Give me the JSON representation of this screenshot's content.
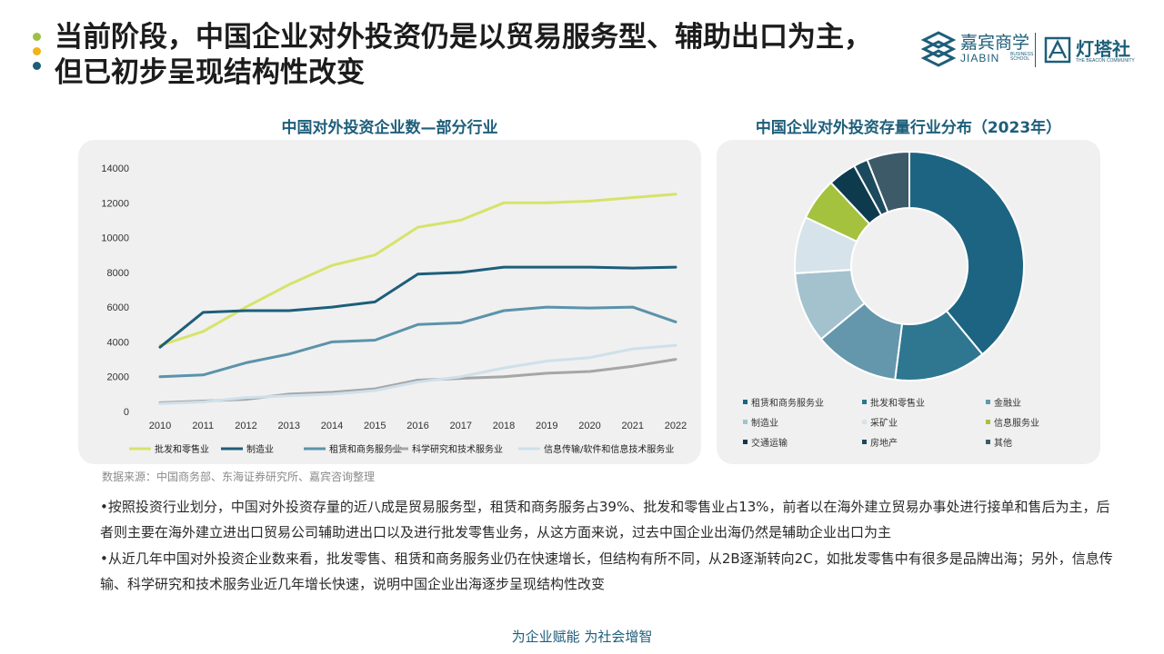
{
  "header": {
    "title_line1": "当前阶段，中国企业对外投资仍是以贸易服务型、辅助出口为主，",
    "title_line2": "但已初步呈现结构性改变",
    "dot_colors": [
      "#9dc143",
      "#f2b319",
      "#1d5e7a"
    ]
  },
  "logo": {
    "brand_cn": "嘉宾商学",
    "brand_en": "JIABIN",
    "brand_tiny": "BUSINESS SCHOOL",
    "partner_cn": "灯塔社",
    "partner_en": "THE BEACON COMMUNITY"
  },
  "chart_data": [
    {
      "type": "line",
      "title": "中国对外投资企业数—部分行业",
      "x": [
        "2010",
        "2011",
        "2012",
        "2013",
        "2014",
        "2015",
        "2016",
        "2017",
        "2018",
        "2019",
        "2020",
        "2021",
        "2022"
      ],
      "ylim": [
        0,
        14000
      ],
      "yticks": [
        "0",
        "2000",
        "4000",
        "6000",
        "8000",
        "10000",
        "12000",
        "14000"
      ],
      "grid": false,
      "legend": "bottom",
      "series": [
        {
          "name": "批发和零售业",
          "color": "#d6e36a",
          "values": [
            3800,
            4600,
            6000,
            7300,
            8400,
            9000,
            10600,
            11000,
            12000,
            12000,
            12100,
            12300,
            12500
          ]
        },
        {
          "name": "制造业",
          "color": "#1d5e7a",
          "values": [
            3700,
            5700,
            5800,
            5800,
            6000,
            6300,
            7900,
            8000,
            8300,
            8300,
            8300,
            8250,
            8300
          ]
        },
        {
          "name": "租赁和商务服务业",
          "color": "#5b93aa",
          "values": [
            2000,
            2100,
            2800,
            3300,
            4000,
            4100,
            5000,
            5100,
            5800,
            6000,
            5950,
            6000,
            5150
          ]
        },
        {
          "name": "科学研究和技术服务业",
          "color": "#a6a6a6",
          "values": [
            500,
            600,
            700,
            1000,
            1100,
            1300,
            1800,
            1900,
            2000,
            2200,
            2300,
            2600,
            3000
          ]
        },
        {
          "name": "信息传输/软件和信息技术服务业",
          "color": "#cfe0ea",
          "values": [
            450,
            550,
            800,
            900,
            1000,
            1200,
            1700,
            2000,
            2500,
            2900,
            3100,
            3600,
            3800
          ]
        }
      ]
    },
    {
      "type": "pie",
      "title": "中国企业对外投资存量行业分布（2023年）",
      "donut": true,
      "legend": "bottom",
      "slices": [
        {
          "name": "租赁和商务服务业",
          "value": 39,
          "color": "#1d6482"
        },
        {
          "name": "批发和零售业",
          "value": 13,
          "color": "#2f7690"
        },
        {
          "name": "金融业",
          "value": 12,
          "color": "#6497ab"
        },
        {
          "name": "制造业",
          "value": 10,
          "color": "#a3c2ce"
        },
        {
          "name": "采矿业",
          "value": 8,
          "color": "#d6e3ea"
        },
        {
          "name": "信息服务业",
          "value": 6,
          "color": "#a4c23d"
        },
        {
          "name": "交通运输",
          "value": 4,
          "color": "#0e3a4e"
        },
        {
          "name": "房地产",
          "value": 2,
          "color": "#1b4a5e"
        },
        {
          "name": "其他",
          "value": 6,
          "color": "#3d5a68"
        }
      ]
    }
  ],
  "source_note": "数据来源：中国商务部、东海证券研究所、嘉宾咨询整理",
  "paragraphs": [
    "•按照投资行业划分，中国对外投资存量的近八成是贸易服务型，租赁和商务服务占39%、批发和零售业占13%，前者以在海外建立贸易办事处进行接单和售后为主，后者则主要在海外建立进出口贸易公司辅助进出口以及进行批发零售业务，从这方面来说，过去中国企业出海仍然是辅助企业出口为主",
    "•从近几年中国对外投资企业数来看，批发零售、租赁和商务服务业仍在快速增长，但结构有所不同，从2B逐渐转向2C，如批发零售中有很多是品牌出海；另外，信息传输、科学研究和技术服务业近几年增长快速，说明中国企业出海逐步呈现结构性改变"
  ],
  "footer": "为企业赋能  为社会增智"
}
